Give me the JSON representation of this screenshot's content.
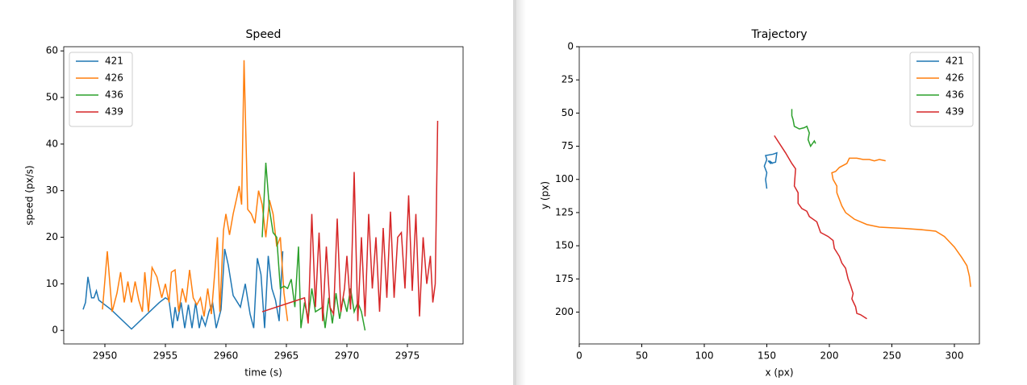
{
  "chart_data": [
    {
      "type": "line",
      "title": "Speed",
      "x_label": "time (s)",
      "y_label": "speed (px/s)",
      "xlim": [
        2946.6,
        2979.6
      ],
      "xticks": [
        2950,
        2955,
        2960,
        2965,
        2970,
        2975
      ],
      "ylim": [
        -2.9,
        60.9
      ],
      "yticks": [
        0,
        10,
        20,
        30,
        40,
        50,
        60
      ],
      "grid": false,
      "legend": "upper left",
      "series": [
        {
          "name": "421",
          "color": "#1f77b4",
          "x": [
            2948.2,
            2948.4,
            2948.6,
            2948.9,
            2949.1,
            2949.3,
            2949.5,
            2950,
            2950.5,
            2952.2,
            2954.5,
            2955,
            2955.3,
            2955.6,
            2955.8,
            2956,
            2956.3,
            2956.6,
            2956.9,
            2957.2,
            2957.5,
            2957.8,
            2958,
            2958.3,
            2958.6,
            2958.9,
            2959.2,
            2959.6,
            2959.9,
            2960.2,
            2960.6,
            2961.2,
            2961.6,
            2962,
            2962.3,
            2962.6,
            2962.9,
            2963.2,
            2963.5,
            2963.8,
            2964.1,
            2964.4,
            2964.7
          ],
          "values": [
            4.5,
            6,
            11.5,
            7,
            7,
            8.5,
            6.5,
            5.5,
            4.5,
            0.3,
            6,
            7,
            6.5,
            0.5,
            5,
            2,
            6,
            0.5,
            5.5,
            0.5,
            6,
            0.5,
            3,
            1,
            4,
            6,
            0.5,
            4.5,
            17.5,
            14,
            7.5,
            5,
            10,
            3.5,
            0.5,
            15.5,
            12,
            0.5,
            16,
            9,
            6.5,
            2,
            17
          ]
        },
        {
          "name": "426",
          "color": "#ff7f0e",
          "x": [
            2949.8,
            2950.2,
            2950.6,
            2951,
            2951.3,
            2951.6,
            2951.9,
            2952.2,
            2952.5,
            2952.8,
            2953.1,
            2953.3,
            2953.6,
            2953.9,
            2954.3,
            2954.7,
            2955,
            2955.3,
            2955.5,
            2955.8,
            2956.1,
            2956.4,
            2956.7,
            2957,
            2957.3,
            2957.6,
            2957.9,
            2958.2,
            2958.5,
            2958.8,
            2959.1,
            2959.3,
            2959.5,
            2959.8,
            2960,
            2960.3,
            2960.6,
            2960.9,
            2961.1,
            2961.3,
            2961.5,
            2961.8,
            2962.1,
            2962.4,
            2962.7,
            2963,
            2963.3,
            2963.6,
            2963.9,
            2964.2,
            2964.5,
            2964.8,
            2965.1
          ],
          "values": [
            4.5,
            17,
            4,
            8,
            12.5,
            6,
            10.5,
            6,
            10.5,
            6.5,
            4,
            12.5,
            4,
            13.5,
            11.5,
            7,
            10,
            6,
            12.5,
            13,
            4,
            9,
            6,
            13,
            7,
            5.5,
            7,
            3,
            9,
            3.5,
            13,
            20,
            4,
            21.5,
            25,
            20.5,
            25,
            28.5,
            31,
            27,
            58,
            26,
            25,
            23,
            30,
            27,
            20,
            28,
            25,
            18,
            20,
            8,
            2
          ]
        },
        {
          "name": "436",
          "color": "#2ca02c",
          "x": [
            2963,
            2963.3,
            2963.6,
            2963.9,
            2964.2,
            2964.5,
            2964.8,
            2965.1,
            2965.4,
            2965.7,
            2966,
            2966.2,
            2966.5,
            2966.8,
            2967.1,
            2967.4,
            2967.7,
            2968,
            2968.2,
            2968.5,
            2968.8,
            2969.1,
            2969.4,
            2969.7,
            2970,
            2970.3,
            2970.6,
            2970.9,
            2971.2,
            2971.5
          ],
          "values": [
            20,
            36,
            26,
            21,
            20,
            9,
            9.5,
            9,
            11,
            5,
            18,
            0.5,
            6,
            2.5,
            9,
            4,
            4.5,
            5,
            0.5,
            7,
            1.5,
            8,
            2.5,
            7,
            4,
            9,
            4,
            6,
            4,
            0
          ]
        },
        {
          "name": "439",
          "color": "#d62728",
          "x": [
            2963,
            2966.5,
            2966.8,
            2967.1,
            2967.4,
            2967.7,
            2968,
            2968.3,
            2968.6,
            2968.9,
            2969.2,
            2969.5,
            2969.8,
            2970,
            2970.3,
            2970.6,
            2970.9,
            2971.2,
            2971.5,
            2971.8,
            2972.1,
            2972.4,
            2972.7,
            2973,
            2973.3,
            2973.6,
            2973.9,
            2974.2,
            2974.5,
            2974.8,
            2975.1,
            2975.4,
            2975.7,
            2976,
            2976.3,
            2976.6,
            2976.9,
            2977.1,
            2977.3,
            2977.5
          ],
          "values": [
            4,
            7,
            1.5,
            25,
            5,
            21,
            2,
            18,
            5,
            3.5,
            24,
            4,
            9,
            16,
            4.5,
            34,
            2,
            20,
            3,
            25,
            9,
            20,
            4,
            22,
            7,
            25.5,
            7,
            20,
            21,
            9,
            29,
            8.5,
            25,
            3,
            20,
            10,
            16,
            6,
            10,
            45
          ]
        }
      ]
    },
    {
      "type": "line",
      "title": "Trajectory",
      "x_label": "x (px)",
      "y_label": "y (px)",
      "xlim": [
        0,
        320
      ],
      "xticks": [
        0,
        50,
        100,
        150,
        200,
        250,
        300
      ],
      "ylim": [
        224,
        0
      ],
      "yticks": [
        0,
        25,
        50,
        75,
        100,
        125,
        150,
        175,
        200
      ],
      "grid": false,
      "legend": "upper right",
      "series": [
        {
          "name": "421",
          "color": "#1f77b4",
          "x": [
            150,
            149,
            150,
            148,
            150,
            149,
            155,
            158,
            157,
            153,
            151,
            155,
            152
          ],
          "values": [
            107,
            100,
            95,
            90,
            85,
            82,
            81,
            80,
            87,
            88,
            86,
            88,
            86
          ]
        },
        {
          "name": "426",
          "color": "#ff7f0e",
          "x": [
            245,
            240,
            236,
            232,
            227,
            222,
            216,
            214,
            208,
            205,
            202,
            203,
            206,
            206,
            210,
            213,
            220,
            230,
            240,
            260,
            275,
            285,
            292,
            296,
            300,
            303,
            306,
            310,
            312,
            313
          ],
          "values": [
            86,
            85,
            86,
            85,
            85,
            84,
            84,
            88,
            91,
            94,
            95,
            100,
            105,
            110,
            120,
            125,
            130,
            134,
            136,
            137,
            138,
            139,
            143,
            147,
            151,
            155,
            159,
            165,
            173,
            181
          ]
        },
        {
          "name": "436",
          "color": "#2ca02c",
          "x": [
            170,
            170,
            171,
            172,
            176,
            180,
            182,
            184,
            183,
            185,
            188,
            189
          ],
          "values": [
            47,
            52,
            55,
            60,
            62,
            61,
            60,
            65,
            70,
            75,
            71,
            73
          ]
        },
        {
          "name": "439",
          "color": "#d62728",
          "x": [
            156,
            165,
            170,
            173,
            172,
            175,
            175,
            178,
            182,
            184,
            190,
            193,
            199,
            203,
            204,
            208,
            210,
            213,
            215,
            217,
            219,
            218,
            221,
            222,
            225,
            230
          ],
          "values": [
            67,
            80,
            88,
            92,
            105,
            110,
            118,
            122,
            124,
            128,
            132,
            140,
            143,
            146,
            152,
            158,
            163,
            167,
            175,
            180,
            186,
            190,
            196,
            201,
            202,
            205
          ]
        }
      ]
    }
  ]
}
